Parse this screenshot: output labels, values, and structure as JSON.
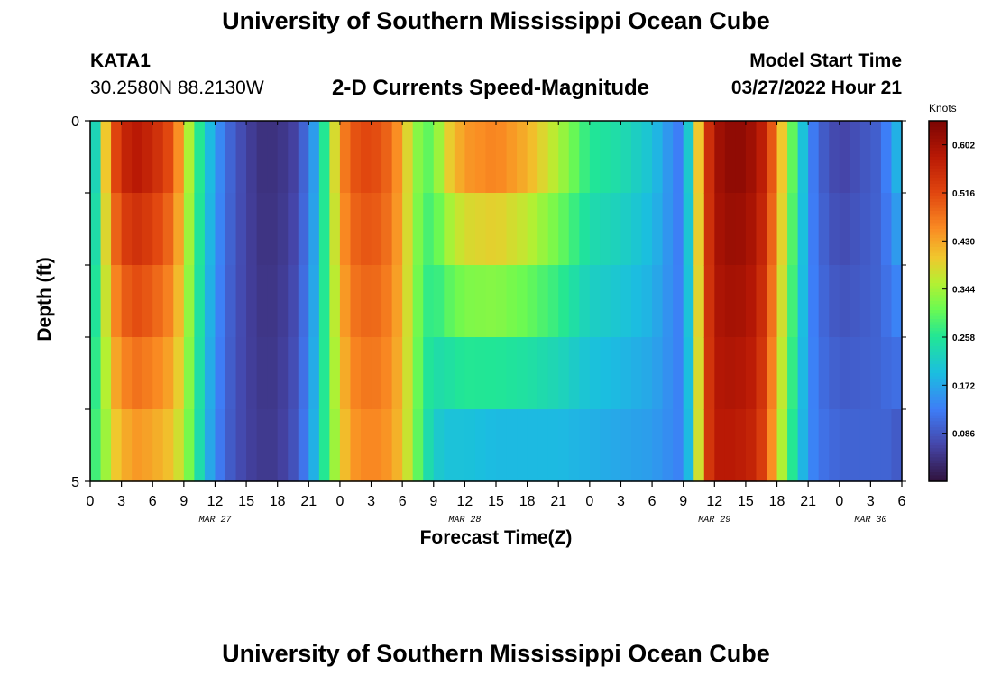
{
  "header": {
    "title": "University of Southern Mississippi Ocean Cube",
    "station_id": "KATA1",
    "coordinates": "30.2580N  88.2130W",
    "subtitle": "2-D Currents Speed-Magnitude",
    "model_start_label": "Model Start Time",
    "model_start_value": "03/27/2022 Hour 21"
  },
  "footer": {
    "title": "University of Southern Mississippi Ocean Cube"
  },
  "chart_data": {
    "type": "heatmap",
    "title": "2-D Currents Speed-Magnitude",
    "xlabel": "Forecast Time(Z)",
    "ylabel": "Depth (ft)",
    "x_unit": "hours since 03/27 00Z",
    "x_range": [
      0,
      78
    ],
    "y_range": [
      0,
      5
    ],
    "y_ticks": [
      "0",
      "5"
    ],
    "x_ticks": [
      {
        "hour": 0,
        "label": "0"
      },
      {
        "hour": 3,
        "label": "3"
      },
      {
        "hour": 6,
        "label": "6"
      },
      {
        "hour": 9,
        "label": "9"
      },
      {
        "hour": 12,
        "label": "12"
      },
      {
        "hour": 15,
        "label": "15"
      },
      {
        "hour": 18,
        "label": "18"
      },
      {
        "hour": 21,
        "label": "21"
      },
      {
        "hour": 24,
        "label": "0"
      },
      {
        "hour": 27,
        "label": "3"
      },
      {
        "hour": 30,
        "label": "6"
      },
      {
        "hour": 33,
        "label": "9"
      },
      {
        "hour": 36,
        "label": "12"
      },
      {
        "hour": 39,
        "label": "15"
      },
      {
        "hour": 42,
        "label": "18"
      },
      {
        "hour": 45,
        "label": "21"
      },
      {
        "hour": 48,
        "label": "0"
      },
      {
        "hour": 51,
        "label": "3"
      },
      {
        "hour": 54,
        "label": "6"
      },
      {
        "hour": 57,
        "label": "9"
      },
      {
        "hour": 60,
        "label": "12"
      },
      {
        "hour": 63,
        "label": "15"
      },
      {
        "hour": 66,
        "label": "18"
      },
      {
        "hour": 69,
        "label": "21"
      },
      {
        "hour": 72,
        "label": "0"
      },
      {
        "hour": 75,
        "label": "3"
      },
      {
        "hour": 78,
        "label": "6"
      }
    ],
    "date_labels": [
      {
        "hour": 12,
        "label": "MAR 27"
      },
      {
        "hour": 36,
        "label": "MAR 28"
      },
      {
        "hour": 60,
        "label": "MAR 29"
      },
      {
        "hour": 75,
        "label": "MAR 30"
      }
    ],
    "colorbar": {
      "units": "Knots",
      "min": 0.0,
      "max": 0.645,
      "ticks": [
        "0.602",
        "0.516",
        "0.430",
        "0.344",
        "0.258",
        "0.172",
        "0.086"
      ]
    },
    "depth_layers": 5,
    "time_keyframes_hours": [
      0,
      0.5,
      1,
      1.5,
      2,
      3,
      4.5,
      6,
      8,
      9,
      10,
      11,
      12,
      13.5,
      15,
      16.5,
      18,
      19.5,
      21,
      22,
      23,
      24,
      25,
      27,
      29,
      30,
      31,
      32,
      33,
      34,
      36,
      39,
      42,
      45,
      48,
      51,
      54,
      56,
      57,
      58,
      59,
      60,
      62,
      64,
      65,
      66,
      67,
      68,
      69,
      70,
      72,
      74,
      76,
      77,
      78
    ],
    "speed_knots_surface": [
      0.2,
      0.23,
      0.3,
      0.4,
      0.48,
      0.56,
      0.58,
      0.56,
      0.5,
      0.4,
      0.3,
      0.22,
      0.16,
      0.1,
      0.06,
      0.04,
      0.04,
      0.06,
      0.12,
      0.2,
      0.32,
      0.44,
      0.5,
      0.52,
      0.48,
      0.42,
      0.35,
      0.3,
      0.3,
      0.38,
      0.44,
      0.46,
      0.42,
      0.35,
      0.26,
      0.24,
      0.2,
      0.14,
      0.12,
      0.3,
      0.5,
      0.6,
      0.63,
      0.6,
      0.55,
      0.45,
      0.35,
      0.25,
      0.15,
      0.1,
      0.06,
      0.08,
      0.1,
      0.16,
      0.2
    ],
    "speed_knots_bottom": [
      0.26,
      0.28,
      0.3,
      0.34,
      0.38,
      0.42,
      0.44,
      0.43,
      0.4,
      0.35,
      0.28,
      0.2,
      0.14,
      0.09,
      0.06,
      0.05,
      0.05,
      0.08,
      0.14,
      0.22,
      0.3,
      0.38,
      0.44,
      0.46,
      0.44,
      0.4,
      0.34,
      0.26,
      0.22,
      0.2,
      0.2,
      0.19,
      0.19,
      0.19,
      0.18,
      0.17,
      0.16,
      0.14,
      0.13,
      0.25,
      0.5,
      0.58,
      0.58,
      0.56,
      0.5,
      0.4,
      0.3,
      0.22,
      0.15,
      0.12,
      0.1,
      0.1,
      0.1,
      0.1,
      0.08
    ]
  }
}
